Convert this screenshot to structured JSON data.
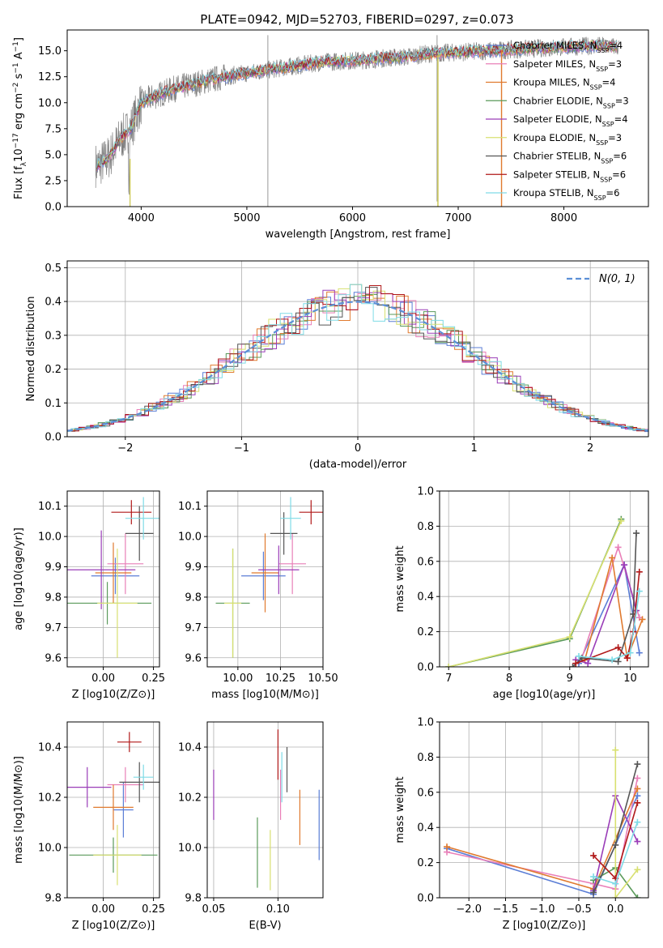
{
  "figure": {
    "title": "PLATE=0942, MJD=52703, FIBERID=0297, z=0.073"
  },
  "series": [
    {
      "name": "Chabrier MILES",
      "nssp": "4",
      "color": "#5b7ed6",
      "markers": [
        1,
        1,
        1,
        1
      ]
    },
    {
      "name": "Salpeter MILES",
      "nssp": "3",
      "color": "#e97fb8",
      "markers": [
        1,
        1,
        1
      ]
    },
    {
      "name": "Kroupa MILES",
      "nssp": "4",
      "color": "#e07a2f"
    },
    {
      "name": "Chabrier ELODIE",
      "nssp": "3",
      "color": "#5a9a5a"
    },
    {
      "name": "Salpeter ELODIE",
      "nssp": "4",
      "color": "#9a3db8"
    },
    {
      "name": "Kroupa ELODIE",
      "nssp": "3",
      "color": "#d8e070"
    },
    {
      "name": "Chabrier STELIB",
      "nssp": "6",
      "color": "#555555"
    },
    {
      "name": "Salpeter STELIB",
      "nssp": "6",
      "color": "#b01818"
    },
    {
      "name": "Kroupa STELIB",
      "nssp": "6",
      "color": "#7fdbe6"
    }
  ],
  "chart_data": [
    {
      "id": "spectrum",
      "type": "line",
      "xlabel": "wavelength [Angstrom, rest frame]",
      "ylabel": "Flux [f_λ 10^-17 erg cm^-2 s^-1 A^-1]",
      "xlim": [
        3300,
        8800
      ],
      "ylim": [
        0,
        17
      ],
      "xticks": [
        4000,
        5000,
        6000,
        7000,
        8000
      ],
      "yticks": [
        "0.0",
        "2.5",
        "5.0",
        "7.5",
        "10.0",
        "12.5",
        "15.0"
      ],
      "legend": "upper right",
      "data_color": "#808080",
      "continuum": {
        "x": [
          3600,
          3700,
          3800,
          3900,
          4000,
          4100,
          4300,
          4500,
          4700,
          4900,
          5100,
          5300,
          5500,
          5700,
          5900,
          6100,
          6300,
          6500,
          6700,
          6900,
          7100,
          7300,
          7500,
          7700,
          7900,
          8100,
          8300,
          8500
        ],
        "y": [
          4.0,
          4.8,
          6.5,
          7.5,
          10.0,
          10.5,
          11.3,
          11.8,
          12.3,
          12.7,
          13.0,
          13.3,
          13.6,
          13.9,
          14.0,
          14.1,
          14.3,
          14.4,
          14.7,
          14.8,
          14.9,
          15.0,
          15.1,
          15.2,
          15.3,
          15.4,
          15.5,
          15.4
        ]
      }
    },
    {
      "id": "residuals",
      "type": "step",
      "xlabel": "(data-model)/error",
      "ylabel": "Normed distribution",
      "xlim": [
        -2.5,
        2.5
      ],
      "ylim": [
        0,
        0.52
      ],
      "xticks": [
        "−2",
        "−1",
        "0",
        "1",
        "2"
      ],
      "yticks": [
        "0.0",
        "0.1",
        "0.2",
        "0.3",
        "0.4",
        "0.5"
      ],
      "reference": {
        "name": "N(0,1)",
        "color": "#5b8fd6"
      },
      "grid": true,
      "legend": "upper right"
    },
    {
      "id": "age_vs_Z",
      "type": "errorbar",
      "xlabel": "Z [log10(Z/Z⊙)]",
      "ylabel": "age [log10(age/yr)]",
      "xlim": [
        -0.18,
        0.28
      ],
      "ylim": [
        9.57,
        10.15
      ],
      "xticks": [
        "0.00",
        "0.25"
      ],
      "yticks": [
        "9.6",
        "9.7",
        "9.8",
        "9.9",
        "10.0",
        "10.1"
      ],
      "points": [
        {
          "x": 0.06,
          "y": 9.87,
          "xerr": 0.12,
          "yerr": 0.06
        },
        {
          "x": 0.11,
          "y": 9.91,
          "xerr": 0.09,
          "yerr": 0.1
        },
        {
          "x": 0.05,
          "y": 9.88,
          "xerr": 0.09,
          "yerr": 0.1
        },
        {
          "x": 0.02,
          "y": 9.78,
          "xerr": 0.22,
          "yerr": 0.07
        },
        {
          "x": -0.01,
          "y": 9.89,
          "xerr": 0.17,
          "yerr": 0.13
        },
        {
          "x": 0.07,
          "y": 9.78,
          "xerr": 0.1,
          "yerr": 0.18
        },
        {
          "x": 0.18,
          "y": 10.01,
          "xerr": 0.07,
          "yerr": 0.09
        },
        {
          "x": 0.14,
          "y": 10.08,
          "xerr": 0.1,
          "yerr": 0.04
        },
        {
          "x": 0.2,
          "y": 10.06,
          "xerr": 0.09,
          "yerr": 0.07
        }
      ]
    },
    {
      "id": "age_vs_mass",
      "type": "errorbar",
      "xlabel": "mass [log10(M/M⊙)]",
      "xlim": [
        9.82,
        10.5
      ],
      "ylim": [
        9.57,
        10.15
      ],
      "xticks": [
        "10.00",
        "10.25",
        "10.50"
      ],
      "yticks": [
        "9.6",
        "9.7",
        "9.8",
        "9.9",
        "10.0",
        "10.1"
      ],
      "points": [
        {
          "x": 10.15,
          "y": 9.87,
          "xerr": 0.13,
          "yerr": 0.08
        },
        {
          "x": 10.32,
          "y": 9.91,
          "xerr": 0.08,
          "yerr": 0.1
        },
        {
          "x": 10.16,
          "y": 9.88,
          "xerr": 0.08,
          "yerr": 0.13
        },
        {
          "x": 9.97,
          "y": 9.78,
          "xerr": 0.1,
          "yerr": 0.18
        },
        {
          "x": 10.24,
          "y": 9.89,
          "xerr": 0.12,
          "yerr": 0.08
        },
        {
          "x": 9.97,
          "y": 9.78,
          "xerr": 0.05,
          "yerr": 0.18
        },
        {
          "x": 10.27,
          "y": 10.01,
          "xerr": 0.08,
          "yerr": 0.07
        },
        {
          "x": 10.43,
          "y": 10.08,
          "xerr": 0.07,
          "yerr": 0.04
        },
        {
          "x": 10.31,
          "y": 10.06,
          "xerr": 0.06,
          "yerr": 0.07
        }
      ]
    },
    {
      "id": "massweight_vs_age",
      "type": "line",
      "xlabel": "age [log10(age/yr)]",
      "ylabel": "mass weight",
      "xlim": [
        6.85,
        10.3
      ],
      "ylim": [
        0,
        1
      ],
      "xticks": [
        "7",
        "8",
        "9",
        "10"
      ],
      "yticks": [
        "0.0",
        "0.2",
        "0.4",
        "0.6",
        "0.8",
        "1.0"
      ],
      "grid": true,
      "lines": [
        {
          "x": [
            9.15,
            9.9,
            10.15
          ],
          "y": [
            0.02,
            0.58,
            0.08
          ]
        },
        {
          "x": [
            9.2,
            9.8,
            10.15
          ],
          "y": [
            0.05,
            0.68,
            0.28
          ]
        },
        {
          "x": [
            9.25,
            9.7,
            9.95,
            10.2
          ],
          "y": [
            0.04,
            0.62,
            0.05,
            0.27
          ]
        },
        {
          "x": [
            7.0,
            9.0,
            9.85
          ],
          "y": [
            0.0,
            0.16,
            0.84
          ]
        },
        {
          "x": [
            9.1,
            9.3,
            9.9,
            10.1
          ],
          "y": [
            0.04,
            0.02,
            0.58,
            0.32
          ]
        },
        {
          "x": [
            7.0,
            9.0,
            9.85
          ],
          "y": [
            0.0,
            0.17,
            0.83
          ]
        },
        {
          "x": [
            9.05,
            9.2,
            9.8,
            10.05,
            10.1
          ],
          "y": [
            0.0,
            0.05,
            0.03,
            0.3,
            0.76
          ]
        },
        {
          "x": [
            9.1,
            9.8,
            9.95,
            10.05,
            10.15
          ],
          "y": [
            0.02,
            0.11,
            0.05,
            0.2,
            0.54
          ]
        },
        {
          "x": [
            9.15,
            9.7,
            10.0,
            10.15
          ],
          "y": [
            0.06,
            0.04,
            0.08,
            0.43
          ]
        }
      ]
    },
    {
      "id": "mass_vs_Z",
      "type": "errorbar",
      "xlabel": "Z [log10(Z/Z⊙)]",
      "ylabel": "mass [log10(M/M⊙)]",
      "xlim": [
        -0.18,
        0.28
      ],
      "ylim": [
        9.8,
        10.5
      ],
      "xticks": [
        "0.00",
        "0.25"
      ],
      "yticks": [
        "9.8",
        "10.0",
        "10.2",
        "10.4"
      ],
      "points": [
        {
          "x": 0.1,
          "y": 10.15,
          "xerr": 0.05,
          "yerr": 0.11
        },
        {
          "x": 0.11,
          "y": 10.25,
          "xerr": 0.09,
          "yerr": 0.07
        },
        {
          "x": 0.05,
          "y": 10.16,
          "xerr": 0.1,
          "yerr": 0.09
        },
        {
          "x": 0.05,
          "y": 9.97,
          "xerr": 0.22,
          "yerr": 0.07
        },
        {
          "x": -0.08,
          "y": 10.24,
          "xerr": 0.12,
          "yerr": 0.08
        },
        {
          "x": 0.07,
          "y": 9.97,
          "xerr": 0.12,
          "yerr": 0.12
        },
        {
          "x": 0.18,
          "y": 10.26,
          "xerr": 0.1,
          "yerr": 0.08
        },
        {
          "x": 0.13,
          "y": 10.42,
          "xerr": 0.06,
          "yerr": 0.04
        },
        {
          "x": 0.2,
          "y": 10.28,
          "xerr": 0.05,
          "yerr": 0.05
        }
      ]
    },
    {
      "id": "mass_vs_EBV",
      "type": "errorbar",
      "xlabel": "E(B-V)",
      "xlim": [
        0.045,
        0.135
      ],
      "ylim": [
        9.8,
        10.5
      ],
      "xticks": [
        "0.05",
        "0.10"
      ],
      "yticks": [
        "9.8",
        "10.0",
        "10.2",
        "10.4"
      ],
      "points": [
        {
          "x": 0.132,
          "y": 10.09,
          "xerr": 0,
          "yerr": 0.14
        },
        {
          "x": 0.102,
          "y": 10.21,
          "xerr": 0,
          "yerr": 0.1
        },
        {
          "x": 0.117,
          "y": 10.12,
          "xerr": 0,
          "yerr": 0.11
        },
        {
          "x": 0.084,
          "y": 9.98,
          "xerr": 0,
          "yerr": 0.14
        },
        {
          "x": 0.05,
          "y": 10.21,
          "xerr": 0,
          "yerr": 0.1
        },
        {
          "x": 0.094,
          "y": 9.95,
          "xerr": 0,
          "yerr": 0.12
        },
        {
          "x": 0.107,
          "y": 10.31,
          "xerr": 0,
          "yerr": 0.09
        },
        {
          "x": 0.1,
          "y": 10.37,
          "xerr": 0,
          "yerr": 0.1
        },
        {
          "x": 0.103,
          "y": 10.28,
          "xerr": 0,
          "yerr": 0.1
        }
      ]
    },
    {
      "id": "massweight_vs_Z",
      "type": "line",
      "xlabel": "Z [log10(Z/Z⊙)]",
      "ylabel": "mass weight",
      "xlim": [
        -2.4,
        0.45
      ],
      "ylim": [
        0,
        1
      ],
      "xticks": [
        "−2.0",
        "−1.5",
        "−1.0",
        "−0.5",
        "0.0"
      ],
      "yticks": [
        "0.0",
        "0.2",
        "0.4",
        "0.6",
        "0.8",
        "1.0"
      ],
      "grid": true,
      "lines": [
        {
          "x": [
            -2.3,
            -0.3,
            0.3
          ],
          "y": [
            0.28,
            0.02,
            0.58
          ]
        },
        {
          "x": [
            -2.3,
            -0.3,
            0.0,
            0.3
          ],
          "y": [
            0.26,
            0.08,
            0.05,
            0.68
          ]
        },
        {
          "x": [
            -2.3,
            -0.3,
            0.3
          ],
          "y": [
            0.29,
            0.05,
            0.62
          ]
        },
        {
          "x": [
            -0.3,
            0.0,
            0.3
          ],
          "y": [
            0.1,
            0.17,
            0.0
          ]
        },
        {
          "x": [
            -0.3,
            0.0,
            0.3
          ],
          "y": [
            0.04,
            0.58,
            0.32
          ]
        },
        {
          "x": [
            0.0,
            0.0,
            0.3
          ],
          "y": [
            0.84,
            0.0,
            0.16
          ]
        },
        {
          "x": [
            -0.3,
            0.0,
            0.3
          ],
          "y": [
            0.03,
            0.3,
            0.76
          ]
        },
        {
          "x": [
            -0.3,
            0.0,
            0.3
          ],
          "y": [
            0.24,
            0.11,
            0.54
          ]
        },
        {
          "x": [
            -0.3,
            0.0,
            0.3
          ],
          "y": [
            0.12,
            0.08,
            0.43
          ]
        }
      ]
    }
  ]
}
